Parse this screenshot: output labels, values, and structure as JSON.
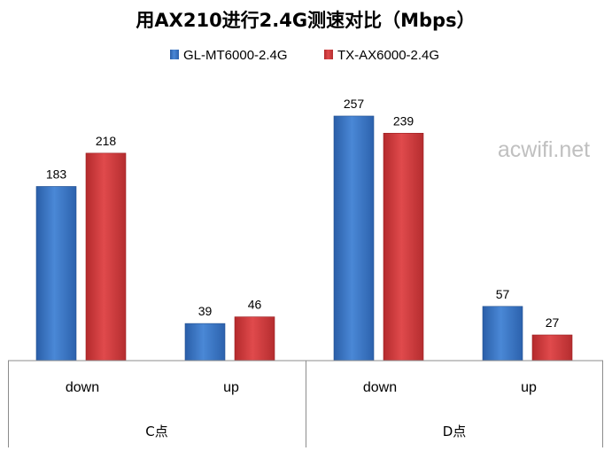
{
  "chart_data": {
    "type": "bar",
    "title": "用AX210进行2.4G测速对比（Mbps）",
    "categories": [
      "down",
      "up",
      "down",
      "up"
    ],
    "groups": [
      {
        "label": "C点",
        "categories": [
          "down",
          "up"
        ]
      },
      {
        "label": "D点",
        "categories": [
          "down",
          "up"
        ]
      }
    ],
    "series": [
      {
        "name": "GL-MT6000-2.4G",
        "values": [
          183,
          39,
          257,
          57
        ],
        "color": "#3d77c4"
      },
      {
        "name": "TX-AX6000-2.4G",
        "values": [
          218,
          46,
          239,
          27
        ],
        "color": "#cd3a3c"
      }
    ],
    "ylim": [
      0,
      270
    ],
    "grid": false,
    "legend": "top-center",
    "watermark": "acwifi.net"
  }
}
